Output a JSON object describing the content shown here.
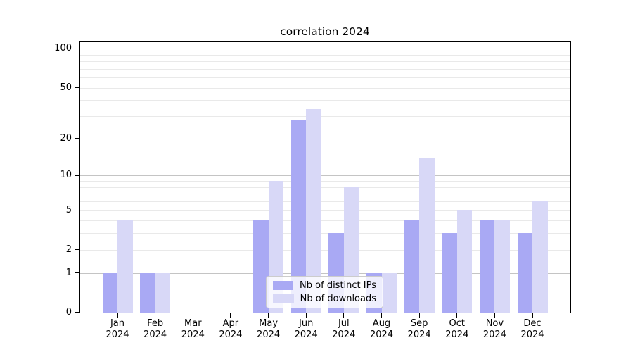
{
  "title": "correlation 2024",
  "chart_data": {
    "type": "bar",
    "title": "correlation 2024",
    "categories": [
      "Jan 2024",
      "Feb 2024",
      "Mar 2024",
      "Apr 2024",
      "May 2024",
      "Jun 2024",
      "Jul 2024",
      "Aug 2024",
      "Sep 2024",
      "Oct 2024",
      "Nov 2024",
      "Dec 2024"
    ],
    "series": [
      {
        "name": "Nb of distinct IPs",
        "color": "#a9a9f4",
        "values": [
          1,
          1,
          0,
          0,
          4,
          28,
          3,
          1,
          4,
          3,
          4,
          3
        ]
      },
      {
        "name": "Nb of downloads",
        "color": "#d8d8f7",
        "values": [
          4,
          1,
          0,
          0,
          9,
          34,
          8,
          1,
          14,
          5,
          4,
          6
        ]
      }
    ],
    "xlabel": "",
    "ylabel": "",
    "yscale": "log10(value+1)",
    "ylim": [
      0,
      112
    ],
    "y_major_ticks": [
      100,
      50,
      20,
      10,
      5,
      2,
      1,
      0
    ],
    "y_major_gridlines": [
      1,
      10,
      100
    ],
    "y_minor_gridlines": [
      2,
      3,
      4,
      5,
      6,
      7,
      8,
      9,
      20,
      30,
      40,
      50,
      60,
      70,
      80,
      90
    ],
    "grid": "horizontal",
    "legend_position": "lower center"
  },
  "colors": {
    "background": "#ffffff",
    "major_grid": "#c4c4c4",
    "minor_grid": "#e9e9e9",
    "spine": "#000000",
    "legend_border": "#cccccc"
  }
}
